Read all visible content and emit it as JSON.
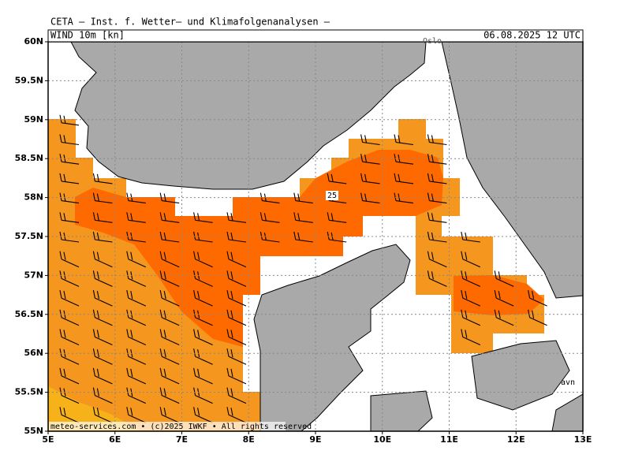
{
  "header": {
    "title": "CETA — Inst. f. Wetter— und Klimafolgenanalysen —",
    "field": "WIND 10m [kn]",
    "valid": "06.08.2025 12 UTC"
  },
  "map": {
    "lat_ticks": [
      {
        "value": 55,
        "label": "55N"
      },
      {
        "value": 55.5,
        "label": "55.5N"
      },
      {
        "value": 56,
        "label": "56N"
      },
      {
        "value": 56.5,
        "label": "56.5N"
      },
      {
        "value": 57,
        "label": "57N"
      },
      {
        "value": 57.5,
        "label": "57.5N"
      },
      {
        "value": 58,
        "label": "58N"
      },
      {
        "value": 58.5,
        "label": "58.5N"
      },
      {
        "value": 59,
        "label": "59N"
      },
      {
        "value": 59.5,
        "label": "59.5N"
      },
      {
        "value": 60,
        "label": "60N"
      }
    ],
    "lon_ticks": [
      {
        "value": 5,
        "label": "5E"
      },
      {
        "value": 6,
        "label": "6E"
      },
      {
        "value": 7,
        "label": "7E"
      },
      {
        "value": 8,
        "label": "8E"
      },
      {
        "value": 9,
        "label": "9E"
      },
      {
        "value": 10,
        "label": "10E"
      },
      {
        "value": 11,
        "label": "11E"
      },
      {
        "value": 12,
        "label": "12E"
      },
      {
        "value": 13,
        "label": "13E"
      }
    ],
    "place_labels": [
      "Oslo",
      "avn"
    ],
    "contour_label": "25",
    "footer": "meteo-services.com • (c)2025 IWKF • All rights reserved"
  }
}
